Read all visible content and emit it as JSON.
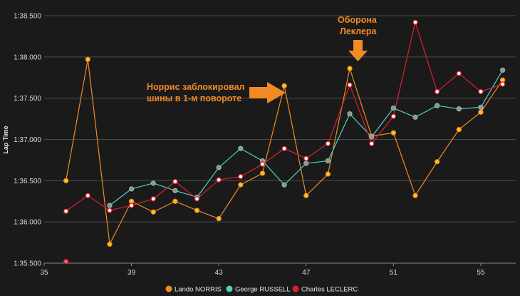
{
  "chart_data": {
    "type": "line",
    "ylabel": "Lap Time",
    "xlabel": "",
    "xlim": [
      35,
      56.6
    ],
    "ylim": [
      95.5,
      98.5
    ],
    "x_ticks": [
      35,
      39,
      43,
      47,
      51,
      55
    ],
    "y_ticks": [
      {
        "value": 95.5,
        "label": "1:35.500"
      },
      {
        "value": 96.0,
        "label": "1:36.000"
      },
      {
        "value": 96.5,
        "label": "1:36.500"
      },
      {
        "value": 97.0,
        "label": "1:37.000"
      },
      {
        "value": 97.5,
        "label": "1:37.500"
      },
      {
        "value": 98.0,
        "label": "1:38.000"
      },
      {
        "value": 98.5,
        "label": "1:38.500"
      }
    ],
    "grid": "horizontal",
    "legend_position": "bottom",
    "series": [
      {
        "name": "Lando NORRIS",
        "color": "#f08a24",
        "marker_fill": "#ffc61a",
        "points": [
          [
            36,
            96.5
          ],
          [
            37,
            97.97
          ],
          [
            38,
            95.73
          ],
          [
            39,
            96.25
          ],
          [
            40,
            96.12
          ],
          [
            41,
            96.25
          ],
          [
            42,
            96.14
          ],
          [
            43,
            96.04
          ],
          [
            44,
            96.45
          ],
          [
            45,
            96.59
          ],
          [
            46,
            97.65
          ],
          [
            47,
            96.32
          ],
          [
            48,
            96.58
          ],
          [
            49,
            97.86
          ],
          [
            50,
            97.04
          ],
          [
            51,
            97.08
          ],
          [
            52,
            96.32
          ],
          [
            53,
            96.73
          ],
          [
            54,
            97.12
          ],
          [
            55,
            97.33
          ],
          [
            56,
            97.72
          ]
        ]
      },
      {
        "name": "George RUSSELL",
        "color": "#4fd1c0",
        "marker_fill": "#e07070",
        "points": [
          [
            38,
            96.2
          ],
          [
            39,
            96.4
          ],
          [
            40,
            96.47
          ],
          [
            41,
            96.38
          ],
          [
            42,
            96.3
          ],
          [
            43,
            96.66
          ],
          [
            44,
            96.89
          ],
          [
            45,
            96.74
          ],
          [
            46,
            96.45
          ],
          [
            47,
            96.71
          ],
          [
            48,
            96.74
          ],
          [
            49,
            97.31
          ],
          [
            50,
            97.03
          ],
          [
            51,
            97.38
          ],
          [
            52,
            97.27
          ],
          [
            53,
            97.41
          ],
          [
            54,
            97.37
          ],
          [
            55,
            97.39
          ],
          [
            56,
            97.84
          ]
        ]
      },
      {
        "name": "Charles LECLERC",
        "color": "#e0202c",
        "marker_fill": "#ffffff",
        "points": [
          [
            36,
            96.13
          ],
          [
            37,
            96.32
          ],
          [
            38,
            96.14
          ],
          [
            39,
            96.2
          ],
          [
            40,
            96.28
          ],
          [
            41,
            96.49
          ],
          [
            42,
            96.28
          ],
          [
            43,
            96.51
          ],
          [
            44,
            96.55
          ],
          [
            45,
            96.7
          ],
          [
            46,
            96.89
          ],
          [
            47,
            96.77
          ],
          [
            48,
            96.95
          ],
          [
            49,
            97.66
          ],
          [
            50,
            96.95
          ],
          [
            51,
            97.28
          ],
          [
            52,
            98.42
          ],
          [
            53,
            97.58
          ],
          [
            54,
            97.8
          ],
          [
            55,
            97.58
          ],
          [
            56,
            97.67
          ]
        ]
      }
    ],
    "outlier": {
      "x": 36,
      "y": 95.52
    },
    "annotations": [
      {
        "lines": [
          "Норрис заблокировал",
          "шины в 1-м повороте"
        ],
        "arrow": "right",
        "color": "#f08a24"
      },
      {
        "lines": [
          "Оборона",
          "Леклера"
        ],
        "arrow": "down",
        "color": "#f08a24"
      }
    ]
  }
}
